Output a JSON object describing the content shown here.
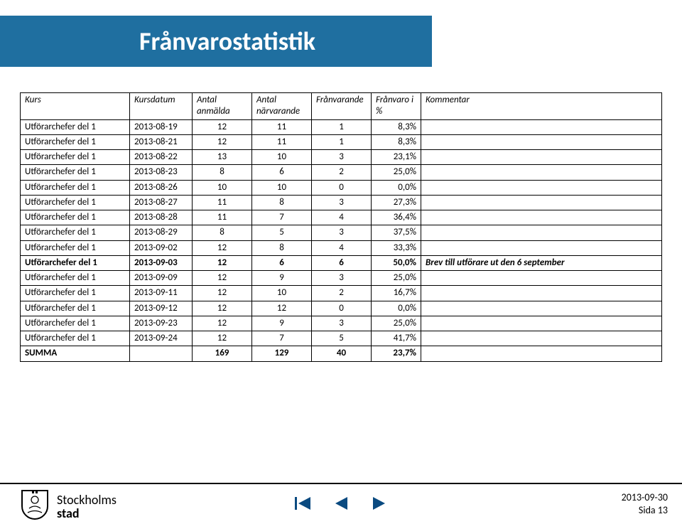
{
  "title": "Frånvarostatistik",
  "colors": {
    "title_bg": "#1f6fa0",
    "title_text": "#ffffff",
    "nav_fill": "#0a4a80",
    "nav_stroke": "#0a4a80",
    "border": "#000000"
  },
  "table": {
    "header": {
      "kurs": "Kurs",
      "kursdatum": "Kursdatum",
      "anmalda_l1": "Antal",
      "anmalda_l2": "anmälda",
      "narvarande_l1": "Antal",
      "narvarande_l2": "närvarande",
      "franvarande": "Frånvarande",
      "franvaro_l1": "Frånvaro i",
      "franvaro_l2": "%",
      "kommentar": "Kommentar"
    },
    "rows": [
      {
        "kurs": "Utförarchefer del 1",
        "datum": "2013-08-19",
        "anm": "12",
        "narv": "11",
        "fran": "1",
        "pct": "8,3%",
        "kom": "",
        "bold": false
      },
      {
        "kurs": "Utförarchefer del 1",
        "datum": "2013-08-21",
        "anm": "12",
        "narv": "11",
        "fran": "1",
        "pct": "8,3%",
        "kom": "",
        "bold": false
      },
      {
        "kurs": "Utförarchefer del 1",
        "datum": "2013-08-22",
        "anm": "13",
        "narv": "10",
        "fran": "3",
        "pct": "23,1%",
        "kom": "",
        "bold": false
      },
      {
        "kurs": "Utförarchefer del 1",
        "datum": "2013-08-23",
        "anm": "8",
        "narv": "6",
        "fran": "2",
        "pct": "25,0%",
        "kom": "",
        "bold": false
      },
      {
        "kurs": "Utförarchefer del 1",
        "datum": "2013-08-26",
        "anm": "10",
        "narv": "10",
        "fran": "0",
        "pct": "0,0%",
        "kom": "",
        "bold": false
      },
      {
        "kurs": "Utförarchefer del 1",
        "datum": "2013-08-27",
        "anm": "11",
        "narv": "8",
        "fran": "3",
        "pct": "27,3%",
        "kom": "",
        "bold": false
      },
      {
        "kurs": "Utförarchefer del 1",
        "datum": "2013-08-28",
        "anm": "11",
        "narv": "7",
        "fran": "4",
        "pct": "36,4%",
        "kom": "",
        "bold": false
      },
      {
        "kurs": "Utförarchefer del 1",
        "datum": "2013-08-29",
        "anm": "8",
        "narv": "5",
        "fran": "3",
        "pct": "37,5%",
        "kom": "",
        "bold": false
      },
      {
        "kurs": "Utförarchefer del 1",
        "datum": "2013-09-02",
        "anm": "12",
        "narv": "8",
        "fran": "4",
        "pct": "33,3%",
        "kom": "",
        "bold": false
      },
      {
        "kurs": "Utförarchefer del 1",
        "datum": "2013-09-03",
        "anm": "12",
        "narv": "6",
        "fran": "6",
        "pct": "50,0%",
        "kom": "Brev till utförare ut den 6 september",
        "bold": true
      },
      {
        "kurs": "Utförarchefer del 1",
        "datum": "2013-09-09",
        "anm": "12",
        "narv": "9",
        "fran": "3",
        "pct": "25,0%",
        "kom": "",
        "bold": false
      },
      {
        "kurs": "Utförarchefer del 1",
        "datum": "2013-09-11",
        "anm": "12",
        "narv": "10",
        "fran": "2",
        "pct": "16,7%",
        "kom": "",
        "bold": false
      },
      {
        "kurs": "Utförarchefer del 1",
        "datum": "2013-09-12",
        "anm": "12",
        "narv": "12",
        "fran": "0",
        "pct": "0,0%",
        "kom": "",
        "bold": false
      },
      {
        "kurs": "Utförarchefer del 1",
        "datum": "2013-09-23",
        "anm": "12",
        "narv": "9",
        "fran": "3",
        "pct": "25,0%",
        "kom": "",
        "bold": false
      },
      {
        "kurs": "Utförarchefer del 1",
        "datum": "2013-09-24",
        "anm": "12",
        "narv": "7",
        "fran": "5",
        "pct": "41,7%",
        "kom": "",
        "bold": false
      }
    ],
    "summary": {
      "label": "SUMMA",
      "anm": "169",
      "narv": "129",
      "fran": "40",
      "pct": "23,7%"
    }
  },
  "footer": {
    "date": "2013-09-30",
    "page": "Sida 13",
    "logo_l1": "Stockholms",
    "logo_l2": "stad"
  }
}
